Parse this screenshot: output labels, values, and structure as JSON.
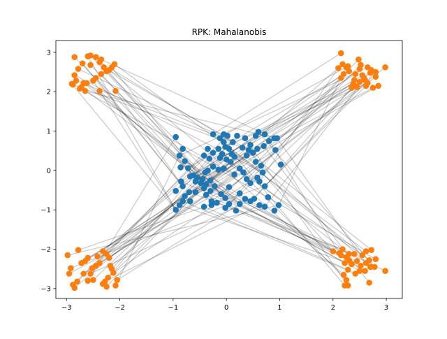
{
  "chart_data": {
    "type": "scatter",
    "title": "RPK: Mahalanobis",
    "xlabel": "",
    "ylabel": "",
    "xlim": [
      -3.2,
      3.3
    ],
    "ylim": [
      -3.25,
      3.3
    ],
    "xticks": [
      -3,
      -2,
      -1,
      0,
      1,
      2,
      3
    ],
    "yticks": [
      -3,
      -2,
      -1,
      0,
      1,
      2,
      3
    ],
    "xtick_labels": [
      "−3",
      "−2",
      "−1",
      "0",
      "1",
      "2",
      "3"
    ],
    "ytick_labels": [
      "−3",
      "−2",
      "−1",
      "0",
      "1",
      "2",
      "3"
    ],
    "grid": false,
    "colors": {
      "inner": "#1f77b4",
      "outer": "#ff7f0e",
      "link": "#000000"
    },
    "series": [
      {
        "values": [
          [
            -0.95,
            0.85
          ],
          [
            -0.82,
            0.55
          ],
          [
            -0.88,
            0.38
          ],
          [
            -0.78,
            0.24
          ],
          [
            -0.86,
            0.08
          ],
          [
            -0.72,
            0.06
          ],
          [
            -0.62,
            -0.12
          ],
          [
            -0.55,
            -0.18
          ],
          [
            -0.68,
            -0.15
          ],
          [
            -0.58,
            -0.28
          ],
          [
            -0.48,
            -0.32
          ],
          [
            -0.42,
            -0.45
          ],
          [
            -0.85,
            -0.28
          ],
          [
            -0.82,
            -0.4
          ],
          [
            -0.95,
            -0.52
          ],
          [
            -0.7,
            -0.55
          ],
          [
            -0.78,
            -0.65
          ],
          [
            -0.82,
            -0.78
          ],
          [
            -0.68,
            -0.78
          ],
          [
            -0.88,
            -0.88
          ],
          [
            -0.95,
            -1.0
          ],
          [
            -0.58,
            -0.55
          ],
          [
            -0.38,
            -0.62
          ],
          [
            -0.28,
            -0.78
          ],
          [
            -0.42,
            -0.92
          ],
          [
            -0.28,
            -0.88
          ],
          [
            -0.18,
            -0.82
          ],
          [
            -0.1,
            -0.6
          ],
          [
            -0.02,
            -0.7
          ],
          [
            0.05,
            -0.42
          ],
          [
            -0.3,
            -0.52
          ],
          [
            -0.22,
            -0.4
          ],
          [
            -0.38,
            -0.35
          ],
          [
            -0.3,
            -0.25
          ],
          [
            -0.45,
            -0.22
          ],
          [
            -0.4,
            -0.05
          ],
          [
            -0.35,
            0.0
          ],
          [
            -0.25,
            0.1
          ],
          [
            -0.15,
            0.02
          ],
          [
            -0.05,
            0.05
          ],
          [
            0.0,
            0.28
          ],
          [
            -0.12,
            0.32
          ],
          [
            -0.32,
            0.3
          ],
          [
            -0.42,
            0.38
          ],
          [
            -0.35,
            0.55
          ],
          [
            -0.25,
            0.45
          ],
          [
            -0.15,
            0.55
          ],
          [
            -0.08,
            0.42
          ],
          [
            -0.02,
            0.6
          ],
          [
            0.05,
            0.55
          ],
          [
            0.1,
            0.42
          ],
          [
            0.15,
            0.35
          ],
          [
            0.08,
            0.22
          ],
          [
            -0.05,
            0.72
          ],
          [
            -0.12,
            0.82
          ],
          [
            -0.25,
            0.92
          ],
          [
            -0.05,
            0.92
          ],
          [
            0.02,
            0.88
          ],
          [
            0.12,
            0.72
          ],
          [
            0.2,
            0.88
          ],
          [
            0.35,
            0.82
          ],
          [
            0.45,
            0.65
          ],
          [
            0.3,
            0.58
          ],
          [
            0.5,
            0.45
          ],
          [
            0.38,
            0.38
          ],
          [
            0.42,
            0.52
          ],
          [
            0.58,
            0.55
          ],
          [
            0.7,
            0.62
          ],
          [
            0.55,
            0.88
          ],
          [
            0.6,
            0.98
          ],
          [
            0.72,
            0.92
          ],
          [
            0.8,
            0.75
          ],
          [
            0.9,
            0.82
          ],
          [
            0.92,
            0.52
          ],
          [
            0.95,
            0.82
          ],
          [
            1.02,
            0.15
          ],
          [
            0.65,
            0.12
          ],
          [
            0.55,
            0.22
          ],
          [
            0.25,
            0.05
          ],
          [
            0.15,
            -0.1
          ],
          [
            0.32,
            -0.05
          ],
          [
            0.38,
            -0.22
          ],
          [
            0.45,
            -0.32
          ],
          [
            0.58,
            -0.18
          ],
          [
            0.62,
            -0.28
          ],
          [
            0.72,
            -0.4
          ],
          [
            0.68,
            -0.05
          ],
          [
            0.62,
            -0.88
          ],
          [
            0.72,
            -0.92
          ],
          [
            0.78,
            -0.68
          ],
          [
            0.9,
            -1.02
          ],
          [
            0.98,
            -0.88
          ],
          [
            0.52,
            -0.72
          ],
          [
            0.25,
            -0.85
          ],
          [
            0.35,
            -0.72
          ],
          [
            0.45,
            -0.78
          ],
          [
            0.25,
            -0.58
          ],
          [
            0.18,
            -1.02
          ],
          [
            0.05,
            -0.85
          ],
          [
            -0.02,
            -0.95
          ]
        ]
      },
      {
        "values": [
          [
            -2.85,
            2.88
          ],
          [
            -2.7,
            2.72
          ],
          [
            -2.6,
            2.9
          ],
          [
            -2.55,
            2.92
          ],
          [
            -2.45,
            2.88
          ],
          [
            -2.38,
            2.75
          ],
          [
            -2.3,
            2.62
          ],
          [
            -2.35,
            2.82
          ],
          [
            -2.2,
            2.55
          ],
          [
            -2.1,
            2.7
          ],
          [
            -2.25,
            2.52
          ],
          [
            -2.35,
            2.45
          ],
          [
            -2.45,
            2.35
          ],
          [
            -2.5,
            2.28
          ],
          [
            -2.62,
            2.22
          ],
          [
            -2.72,
            2.12
          ],
          [
            -2.82,
            2.28
          ],
          [
            -2.88,
            2.18
          ],
          [
            -2.65,
            2.02
          ],
          [
            -2.75,
            2.08
          ],
          [
            -2.85,
            2.42
          ],
          [
            -2.68,
            2.22
          ],
          [
            -2.38,
            2.02
          ],
          [
            -2.08,
            2.02
          ],
          [
            -2.9,
            2.2
          ],
          [
            -2.55,
            2.68
          ],
          [
            -2.15,
            2.62
          ],
          [
            -2.78,
            2.58
          ],
          [
            2.15,
            2.98
          ],
          [
            2.1,
            2.6
          ],
          [
            2.25,
            2.62
          ],
          [
            2.15,
            2.35
          ],
          [
            2.3,
            2.52
          ],
          [
            2.4,
            2.3
          ],
          [
            2.5,
            2.58
          ],
          [
            2.48,
            2.82
          ],
          [
            2.45,
            2.12
          ],
          [
            2.6,
            2.3
          ],
          [
            2.65,
            2.22
          ],
          [
            2.52,
            2.68
          ],
          [
            2.72,
            2.55
          ],
          [
            2.8,
            2.5
          ],
          [
            2.65,
            2.62
          ],
          [
            2.75,
            2.1
          ],
          [
            2.85,
            2.15
          ],
          [
            2.98,
            2.62
          ],
          [
            2.55,
            2.42
          ],
          [
            2.7,
            2.48
          ],
          [
            2.38,
            2.2
          ],
          [
            2.28,
            2.65
          ],
          [
            2.62,
            2.15
          ],
          [
            2.35,
            2.1
          ],
          [
            2.58,
            2.35
          ],
          [
            2.42,
            2.45
          ],
          [
            2.2,
            2.45
          ],
          [
            2.18,
            2.7
          ],
          [
            2.8,
            2.38
          ],
          [
            2.5,
            2.25
          ],
          [
            -2.98,
            -2.15
          ],
          [
            -2.92,
            -2.48
          ],
          [
            -2.95,
            -2.62
          ],
          [
            -2.88,
            -2.9
          ],
          [
            -2.85,
            -2.98
          ],
          [
            -2.8,
            -2.82
          ],
          [
            -2.72,
            -2.35
          ],
          [
            -2.65,
            -2.3
          ],
          [
            -2.6,
            -2.22
          ],
          [
            -2.78,
            -2.02
          ],
          [
            -2.55,
            -2.62
          ],
          [
            -2.6,
            -2.8
          ],
          [
            -2.5,
            -2.78
          ],
          [
            -2.45,
            -2.42
          ],
          [
            -2.38,
            -2.35
          ],
          [
            -2.32,
            -2.05
          ],
          [
            -2.25,
            -2.12
          ],
          [
            -2.2,
            -2.22
          ],
          [
            -2.18,
            -2.42
          ],
          [
            -2.12,
            -2.6
          ],
          [
            -2.05,
            -2.78
          ],
          [
            -2.08,
            -2.92
          ],
          [
            -2.25,
            -2.95
          ],
          [
            -2.32,
            -2.88
          ],
          [
            -2.22,
            -2.72
          ],
          [
            -2.15,
            -2.5
          ],
          [
            -2.42,
            -2.18
          ],
          [
            -2.68,
            -2.62
          ],
          [
            -2.52,
            -2.48
          ],
          [
            -2.28,
            -2.82
          ],
          [
            2.0,
            -2.05
          ],
          [
            2.12,
            -2.1
          ],
          [
            2.18,
            -2.0
          ],
          [
            2.25,
            -2.2
          ],
          [
            2.3,
            -2.12
          ],
          [
            2.35,
            -2.38
          ],
          [
            2.45,
            -2.3
          ],
          [
            2.52,
            -2.42
          ],
          [
            2.55,
            -2.15
          ],
          [
            2.62,
            -2.05
          ],
          [
            2.68,
            -2.28
          ],
          [
            2.72,
            -2.02
          ],
          [
            2.78,
            -2.45
          ],
          [
            2.7,
            -2.45
          ],
          [
            2.6,
            -2.55
          ],
          [
            2.5,
            -2.55
          ],
          [
            2.42,
            -2.62
          ],
          [
            2.28,
            -2.52
          ],
          [
            2.22,
            -2.35
          ],
          [
            2.2,
            -2.65
          ],
          [
            2.25,
            -2.78
          ],
          [
            2.22,
            -2.92
          ],
          [
            2.28,
            -2.92
          ],
          [
            2.68,
            -2.85
          ],
          [
            2.62,
            -2.35
          ],
          [
            2.8,
            -2.25
          ],
          [
            2.98,
            -2.55
          ],
          [
            2.4,
            -2.12
          ],
          [
            2.3,
            -2.28
          ],
          [
            2.15,
            -2.15
          ]
        ]
      }
    ]
  }
}
